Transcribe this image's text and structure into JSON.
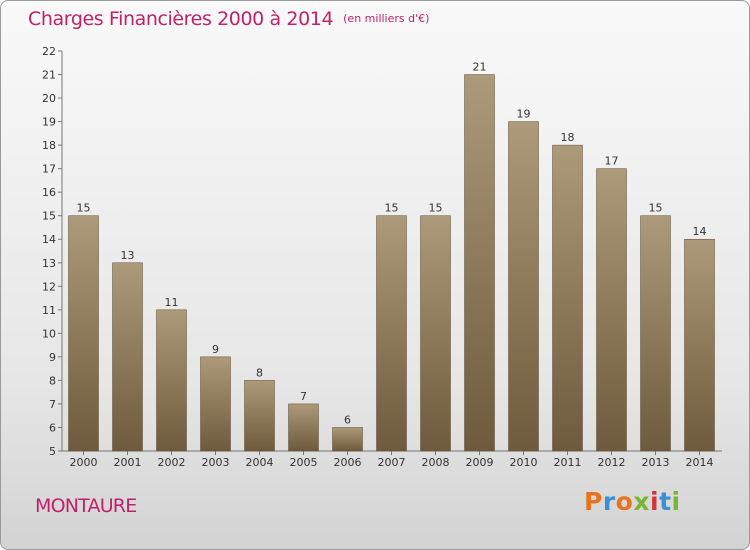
{
  "title": "Charges Financières 2000 à 2014",
  "subtitle": "(en milliers d'€)",
  "commune": "MONTAURE",
  "logo": {
    "text": "Proxiti",
    "colors": [
      "#e8731c",
      "#3b8fd4",
      "#e8731c",
      "#7ab534",
      "#d6333e",
      "#3b8fd4",
      "#7ab534"
    ]
  },
  "colors": {
    "accent": "#c0226a",
    "bar_light": "#ac9a7a",
    "bar_dark": "#6e5a3c"
  },
  "chart_data": {
    "type": "bar",
    "title": "Charges Financières 2000 à 2014",
    "subtitle": "(en milliers d'€)",
    "categories": [
      "2000",
      "2001",
      "2002",
      "2003",
      "2004",
      "2005",
      "2006",
      "2007",
      "2008",
      "2009",
      "2010",
      "2011",
      "2012",
      "2013",
      "2014"
    ],
    "values": [
      15,
      13,
      11,
      9,
      8,
      7,
      6,
      15,
      15,
      21,
      19,
      18,
      17,
      15,
      14
    ],
    "ylim": [
      5,
      22
    ],
    "yticks": [
      5,
      6,
      7,
      8,
      9,
      10,
      11,
      12,
      13,
      14,
      15,
      16,
      17,
      18,
      19,
      20,
      21,
      22
    ],
    "grid": false,
    "legend": "none",
    "data_labels": true
  }
}
